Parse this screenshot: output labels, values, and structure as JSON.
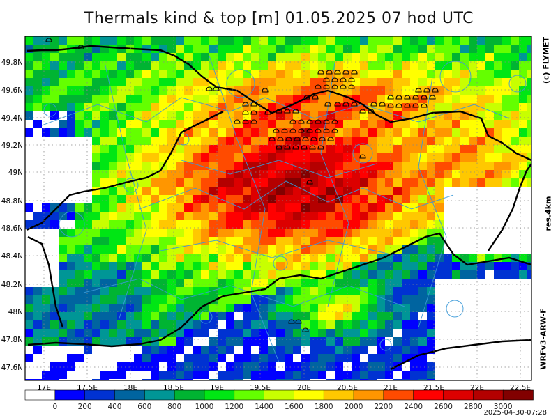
{
  "title": "Thermals kind & top [m]  01.05.2025 07 hod UTC",
  "credit": "(c) FLYMET",
  "resolution": "res.4km",
  "model": "WRFv3-ARW-F",
  "timestamp": "2025-04-30-07:28",
  "lat_labels": [
    "49.8N",
    "49.6N",
    "49.4N",
    "49.2N",
    "49N",
    "48.8N",
    "48.6N",
    "48.4N",
    "48.2N",
    "48N",
    "47.8N",
    "47.6N"
  ],
  "lon_labels": [
    "17E",
    "17.5E",
    "18E",
    "18.5E",
    "19E",
    "19.5E",
    "20E",
    "20.5E",
    "21E",
    "21.5E",
    "22E",
    "22.5E"
  ],
  "colorbar": {
    "labels": [
      "0",
      "200",
      "400",
      "600",
      "800",
      "1000",
      "1200",
      "1400",
      "1600",
      "1800",
      "2000",
      "2200",
      "2400",
      "2600",
      "2800",
      "3000"
    ],
    "colors": [
      "#ffffff",
      "#0000ff",
      "#0032d2",
      "#0064a0",
      "#009696",
      "#00b432",
      "#00e614",
      "#64ff00",
      "#c8ff00",
      "#ffff00",
      "#ffc800",
      "#ff9600",
      "#ff4b00",
      "#ff0000",
      "#dc0000",
      "#b40000",
      "#820000"
    ]
  }
}
